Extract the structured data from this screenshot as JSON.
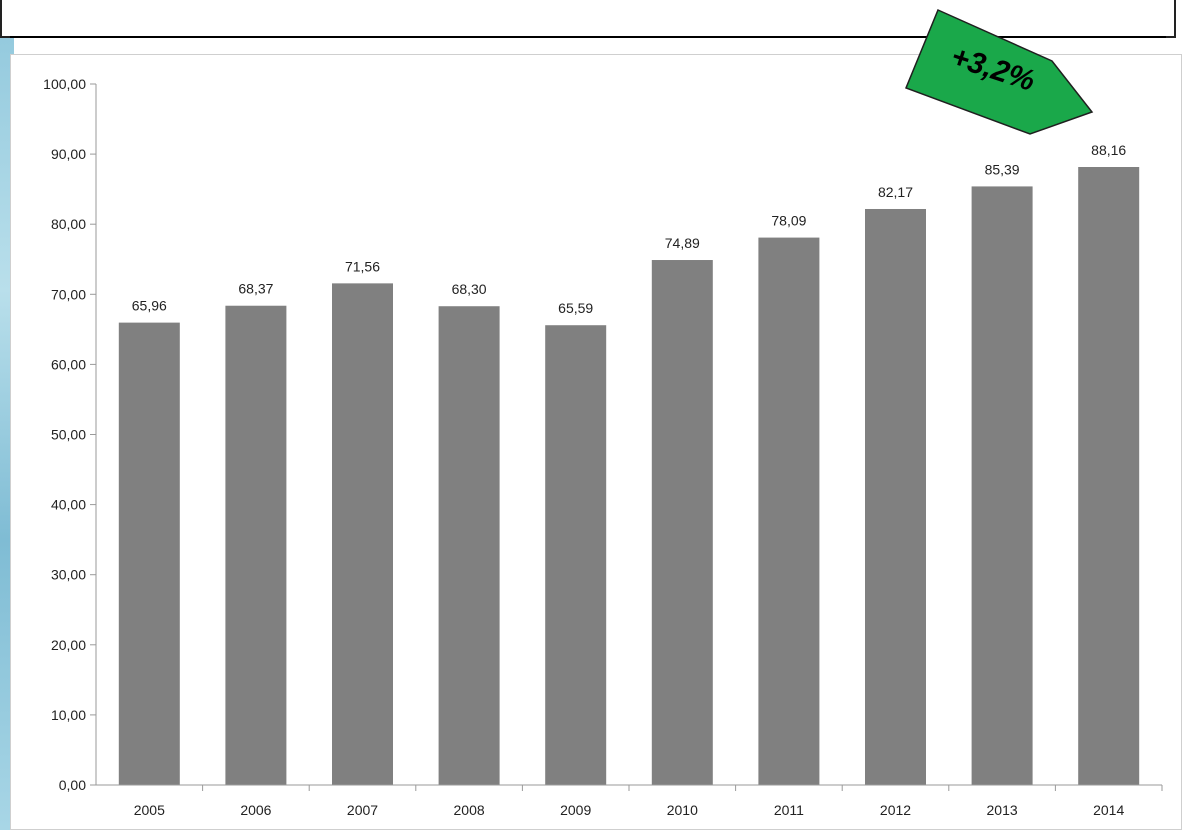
{
  "colors": {
    "bar": "#808080",
    "badge": "#1aa84a",
    "axis": "#9a9a9a"
  },
  "header": {
    "title": ""
  },
  "chart_data": {
    "type": "bar",
    "title": "",
    "xlabel": "",
    "ylabel": "",
    "categories": [
      "2005",
      "2006",
      "2007",
      "2008",
      "2009",
      "2010",
      "2011",
      "2012",
      "2013",
      "2014"
    ],
    "values": [
      65.96,
      68.37,
      71.56,
      68.3,
      65.59,
      74.89,
      78.09,
      82.17,
      85.39,
      88.16
    ],
    "value_labels": [
      "65,96",
      "68,37",
      "71,56",
      "68,30",
      "65,59",
      "74,89",
      "78,09",
      "82,17",
      "85,39",
      "88,16"
    ],
    "ylim": [
      0,
      100
    ],
    "y_ticks": [
      "0,00",
      "10,00",
      "20,00",
      "30,00",
      "40,00",
      "50,00",
      "60,00",
      "70,00",
      "80,00",
      "90,00",
      "100,00"
    ],
    "grid": false,
    "legend": "none",
    "annotation": {
      "text": "+3,2%",
      "points_to": "2014"
    }
  }
}
